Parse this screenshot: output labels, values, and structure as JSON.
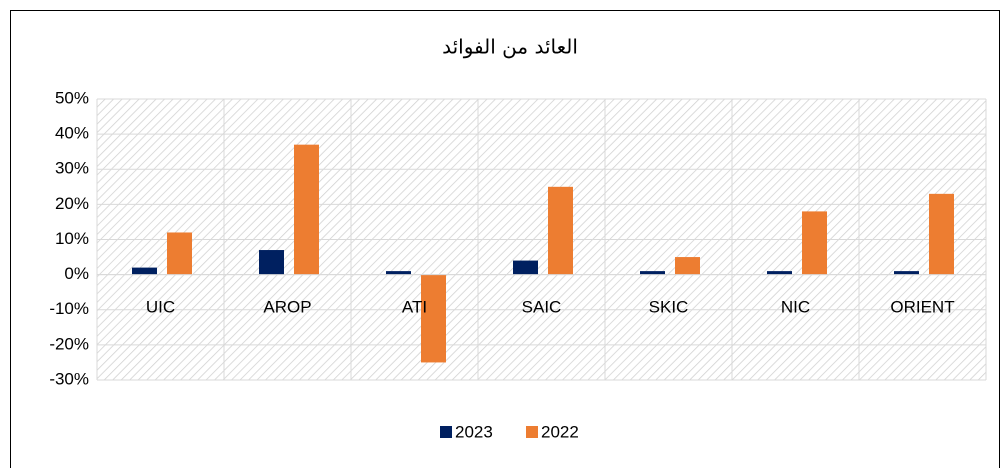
{
  "chart_data": {
    "type": "bar",
    "title": "العائد من الفوائد",
    "categories": [
      "UIC",
      "AROP",
      "ATI",
      "SAIC",
      "SKIC",
      "NIC",
      "ORIENT"
    ],
    "series": [
      {
        "name": "2023",
        "color": "#002060",
        "values": [
          2,
          7,
          1,
          4,
          1,
          1,
          1
        ]
      },
      {
        "name": "2022",
        "color": "#ED7D31",
        "values": [
          12,
          37,
          -25,
          25,
          5,
          18,
          23
        ]
      }
    ],
    "ylim": [
      -30,
      50
    ],
    "yticks": [
      {
        "value": -30,
        "label": "-30%"
      },
      {
        "value": -20,
        "label": "-20%"
      },
      {
        "value": -10,
        "label": "-10%"
      },
      {
        "value": 0,
        "label": "0%"
      },
      {
        "value": 10,
        "label": "10%"
      },
      {
        "value": 20,
        "label": "20%"
      },
      {
        "value": 30,
        "label": "30%"
      },
      {
        "value": 40,
        "label": "40%"
      },
      {
        "value": 50,
        "label": "50%"
      }
    ],
    "grid": true,
    "legend": "bottom"
  }
}
